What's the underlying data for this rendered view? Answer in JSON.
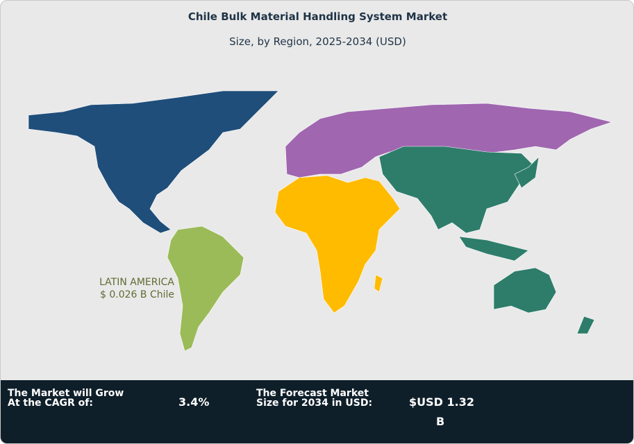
{
  "title": "Chile Bulk Material Handling System Market",
  "subtitle": "Size, by Region, 2025-2034 (USD)",
  "regions": {
    "north_america": {
      "color": "#1f4e7a"
    },
    "latin_america": {
      "color": "#9bbb59",
      "label": "LATIN AMERICA",
      "value": "$ 0.026 B Chile"
    },
    "europe": {
      "color": "#a066b0"
    },
    "africa_middle_east": {
      "color": "#ffbb00"
    },
    "asia_pacific": {
      "color": "#2e7d6b"
    }
  },
  "footer": {
    "cagr_label_1": "The Market will Grow",
    "cagr_label_2": "At the CAGR of:",
    "cagr_value": "3.4%",
    "forecast_label_1": "The Forecast Market",
    "forecast_label_2": "Size for 2034 in USD:",
    "forecast_value_1": "$USD 1.32",
    "forecast_value_2": "B"
  }
}
